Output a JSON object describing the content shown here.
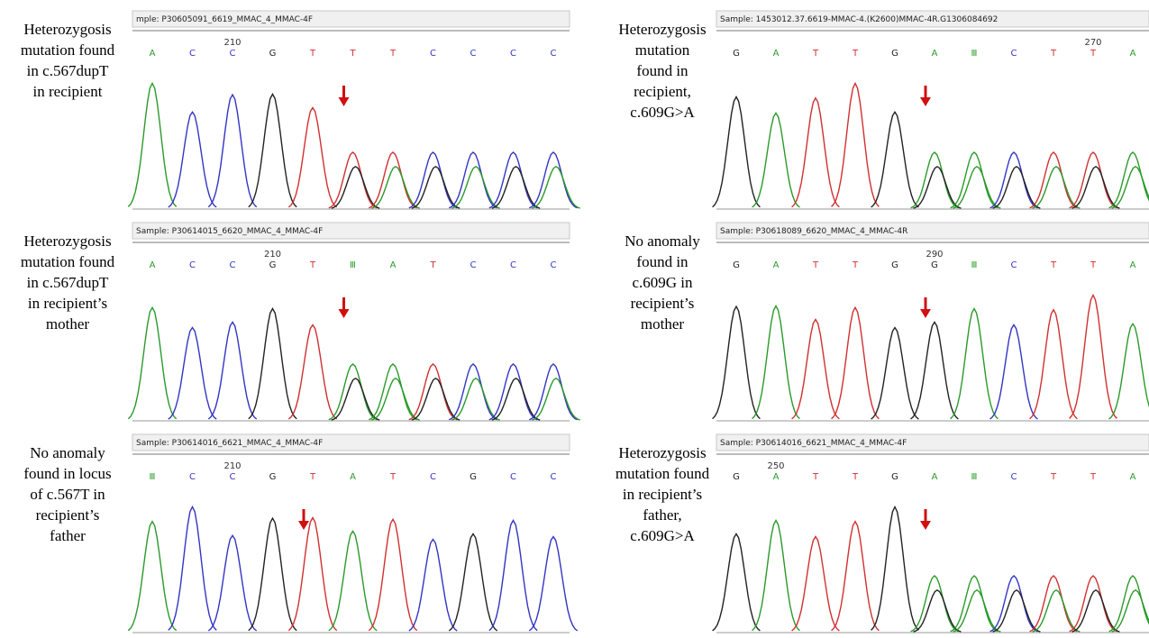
{
  "panels": [
    {
      "sample": "mple: P30605091_6619_MMAC_4_MMAC-4F",
      "position": "210",
      "bases": [
        "A",
        "C",
        "C",
        "G",
        "T",
        "T",
        "T",
        "C",
        "C",
        "C",
        "C"
      ],
      "caption": [
        "Heterozygosis",
        "mutation found",
        "in c.567dupT",
        "in recipient"
      ]
    },
    {
      "sample": "Sample: 1453012.37.6619-MMAC-4.(K2600)MMAC-4R.G1306084692",
      "position": "270",
      "bases": [
        "G",
        "A",
        "T",
        "T",
        "G",
        "A",
        "Ⅲ",
        "C",
        "T",
        "T",
        "A"
      ],
      "caption": [
        "Heterozygosis",
        "mutation",
        "found in",
        "recipient,",
        "c.609G>A"
      ]
    },
    {
      "sample": "Sample: P30614015_6620_MMAC_4_MMAC-4F",
      "position": "210",
      "bases": [
        "A",
        "C",
        "C",
        "G",
        "T",
        "Ⅲ",
        "A",
        "T",
        "C",
        "C",
        "C"
      ],
      "caption": [
        "Heterozygosis",
        "mutation found",
        "in c.567dupT",
        "in recipient’s",
        "mother"
      ]
    },
    {
      "sample": "Sample: P30618089_6620_MMAC_4_MMAC-4R",
      "position": "290",
      "bases": [
        "G",
        "A",
        "T",
        "T",
        "G",
        "G",
        "Ⅲ",
        "C",
        "T",
        "T",
        "A"
      ],
      "caption": [
        "No anomaly",
        "found in",
        "c.609G in",
        "recipient’s",
        "mother"
      ]
    },
    {
      "sample": "Sample: P30614016_6621_MMAC_4_MMAC-4F",
      "position": "210",
      "bases": [
        "Ⅲ",
        "C",
        "C",
        "G",
        "T",
        "A",
        "T",
        "C",
        "G",
        "C",
        "C"
      ],
      "caption": [
        "No anomaly",
        "found in locus",
        "of c.567T in",
        "recipient’s",
        "father"
      ]
    },
    {
      "sample": "Sample: P30614016_6621_MMAC_4_MMAC-4F",
      "position": "250",
      "bases": [
        "G",
        "A",
        "T",
        "T",
        "G",
        "A",
        "Ⅲ",
        "C",
        "T",
        "T",
        "A"
      ],
      "caption": [
        "Heterozygosis",
        "mutation found",
        "in recipient’s",
        "father,",
        "c.609G>A"
      ]
    }
  ]
}
